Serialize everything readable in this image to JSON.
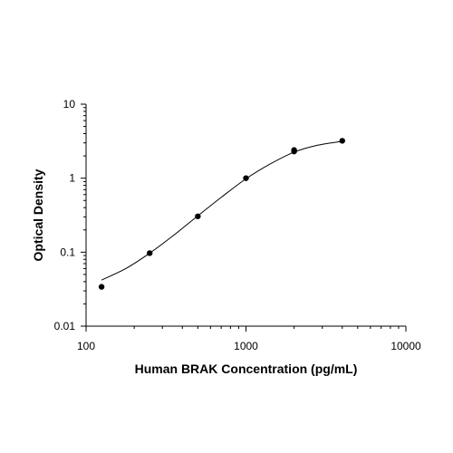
{
  "chart_data": {
    "type": "scatter",
    "title": "",
    "xlabel": "Human BRAK Concentration (pg/mL)",
    "ylabel": "Optical Density",
    "x_scale": "log",
    "y_scale": "log",
    "xlim": [
      100,
      10000
    ],
    "ylim": [
      0.01,
      10
    ],
    "x_ticks": [
      "100",
      "1000",
      "10000"
    ],
    "y_ticks": [
      "0.01",
      "0.1",
      "1",
      "10"
    ],
    "grid": false,
    "legend": "none",
    "series": [
      {
        "points": [
          {
            "x": 125,
            "y": 0.034
          },
          {
            "x": 250,
            "y": 0.097
          },
          {
            "x": 500,
            "y": 0.305
          },
          {
            "x": 1000,
            "y": 1.0
          },
          {
            "x": 2000,
            "y": 2.3
          },
          {
            "x": 2000,
            "y": 2.4
          },
          {
            "x": 4000,
            "y": 3.2
          }
        ],
        "fit_curve": [
          {
            "x": 125,
            "y": 0.042
          },
          {
            "x": 177,
            "y": 0.06
          },
          {
            "x": 250,
            "y": 0.097
          },
          {
            "x": 354,
            "y": 0.17
          },
          {
            "x": 500,
            "y": 0.31
          },
          {
            "x": 707,
            "y": 0.56
          },
          {
            "x": 1000,
            "y": 0.98
          },
          {
            "x": 1414,
            "y": 1.55
          },
          {
            "x": 2000,
            "y": 2.25
          },
          {
            "x": 2828,
            "y": 2.8
          },
          {
            "x": 4000,
            "y": 3.15
          }
        ]
      }
    ]
  }
}
